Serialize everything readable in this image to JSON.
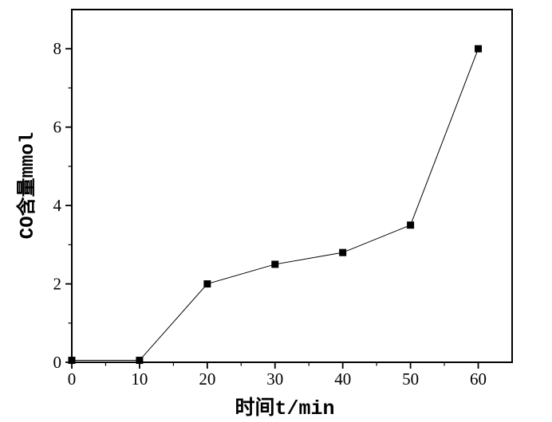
{
  "chart_data": {
    "type": "line",
    "title": "",
    "xlabel": "时间t/min",
    "ylabel": "CO含量mmol",
    "x": [
      0,
      10,
      20,
      30,
      40,
      50,
      60
    ],
    "y": [
      0.05,
      0.05,
      2.0,
      2.5,
      2.8,
      3.5,
      8.0
    ],
    "xlim": [
      0,
      65
    ],
    "ylim": [
      0,
      9
    ],
    "x_major_ticks": [
      0,
      10,
      20,
      30,
      40,
      50,
      60
    ],
    "x_minor_ticks": [
      5,
      15,
      25,
      35,
      45,
      55
    ],
    "y_major_ticks": [
      0,
      2,
      4,
      6,
      8
    ],
    "y_minor_ticks": [
      1,
      3,
      5,
      7
    ],
    "marker": "square",
    "grid": false,
    "legend_position": "none",
    "colors": {
      "line": "#000000",
      "marker": "#000000",
      "text": "#000000",
      "frame": "#000000",
      "background": "#ffffff"
    }
  }
}
